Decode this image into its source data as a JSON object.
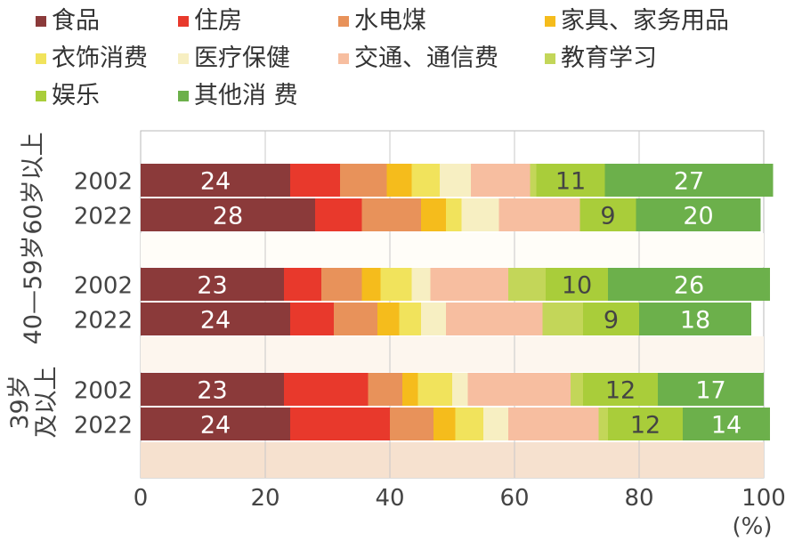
{
  "chart_data": {
    "type": "bar",
    "orientation": "horizontal",
    "stacked": true,
    "xlim": [
      0,
      100
    ],
    "x_ticks": [
      "0",
      "20",
      "40",
      "60",
      "80",
      "100"
    ],
    "x_unit": "(%)",
    "legend_placement": "top",
    "categories_legend": [
      "食品",
      "住房",
      "水电煤",
      "家具、家务用品",
      "衣饰消费",
      "医疗保健",
      "交通、通信费",
      "教育学习",
      "娱乐",
      "其他消 费"
    ],
    "colors": [
      "#8b3a3a",
      "#e8392c",
      "#e8925a",
      "#f5bc1c",
      "#f1e35c",
      "#f7efc2",
      "#f7bea0",
      "#c3d659",
      "#a9cd3a",
      "#6cb04b"
    ],
    "groups": [
      {
        "label": "60岁以上",
        "rows": [
          {
            "year": "2002",
            "values": [
              24,
              8,
              7.5,
              4,
              4.5,
              5,
              9.5,
              1,
              11,
              27
            ],
            "labels": [
              "24",
              "",
              "",
              "",
              "",
              "",
              "",
              "",
              "11",
              "27"
            ]
          },
          {
            "year": "2022",
            "values": [
              28,
              7.5,
              9.5,
              4,
              2.5,
              6,
              13,
              0,
              9,
              20
            ],
            "labels": [
              "28",
              "",
              "",
              "",
              "",
              "",
              "",
              "",
              "9",
              "20"
            ]
          }
        ]
      },
      {
        "label": "40—59岁",
        "rows": [
          {
            "year": "2002",
            "values": [
              23,
              6,
              6.5,
              3,
              5,
              3,
              12.5,
              6,
              10,
              26
            ],
            "labels": [
              "23",
              "",
              "",
              "",
              "",
              "",
              "",
              "",
              "10",
              "26"
            ]
          },
          {
            "year": "2022",
            "values": [
              24,
              7,
              7,
              3.5,
              3.5,
              4,
              15.5,
              6.5,
              9,
              18
            ],
            "labels": [
              "24",
              "",
              "",
              "",
              "",
              "",
              "",
              "",
              "9",
              "18"
            ]
          }
        ]
      },
      {
        "label": "39岁\n及以上",
        "rows": [
          {
            "year": "2002",
            "values": [
              23,
              13.5,
              5.5,
              2.5,
              5.5,
              2.5,
              16.5,
              2,
              12,
              17
            ],
            "labels": [
              "23",
              "",
              "",
              "",
              "",
              "",
              "",
              "",
              "12",
              "17"
            ]
          },
          {
            "year": "2022",
            "values": [
              24,
              16,
              7,
              3.5,
              4.5,
              4,
              14.5,
              1.5,
              12,
              14
            ],
            "labels": [
              "24",
              "",
              "",
              "",
              "",
              "",
              "",
              "",
              "12",
              "14"
            ]
          }
        ]
      }
    ]
  }
}
